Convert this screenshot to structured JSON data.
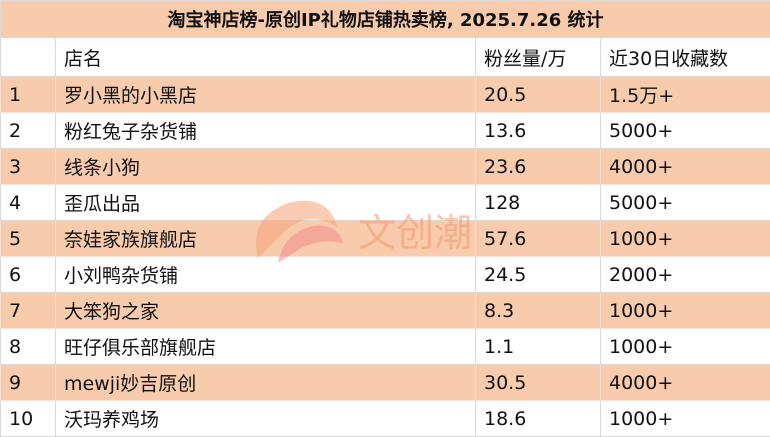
{
  "title": "淘宝神店榜-原创IP礼物店铺热卖榜, 2025.7.26 统计",
  "table": {
    "header": [
      "店名",
      "粉丝量/万",
      "近30日收藏数"
    ],
    "rows": [
      [
        "1",
        "罗小黑的小黑店",
        "20.5",
        "1.5万+"
      ],
      [
        "2",
        "粉红兔子杂货铺",
        "13.6",
        "5000+"
      ],
      [
        "3",
        "线条小狗",
        "23.6",
        "4000+"
      ],
      [
        "4",
        "歪瓜出品",
        "128",
        "5000+"
      ],
      [
        "5",
        "奈娃家族旗舰店",
        "57.6",
        "1000+"
      ],
      [
        "6",
        "小刘鸭杂货铺",
        "24.5",
        "2000+"
      ],
      [
        "7",
        "大笨狗之家",
        "8.3",
        "1000+"
      ],
      [
        "8",
        "旺仔俱乐部旗舰店",
        "1.1",
        "1000+"
      ],
      [
        "9",
        "mewji妙吉原创",
        "30.5",
        "4000+"
      ],
      [
        "10",
        "沃玛养鸡场",
        "18.6",
        "1000+"
      ]
    ]
  },
  "watermark": "文创潮"
}
